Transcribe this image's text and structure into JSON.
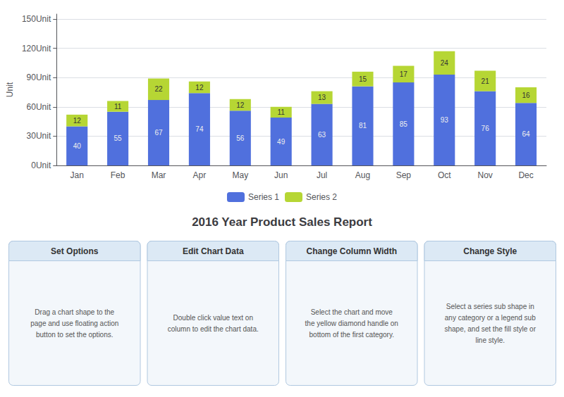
{
  "chart_data": {
    "type": "bar",
    "title": "2016 Year Product Sales Report",
    "categories": [
      "Jan",
      "Feb",
      "Mar",
      "Apr",
      "May",
      "Jun",
      "Jul",
      "Aug",
      "Sep",
      "Oct",
      "Nov",
      "Dec"
    ],
    "series": [
      {
        "name": "Series 1",
        "values": [
          40,
          55,
          67,
          74,
          56,
          49,
          63,
          81,
          85,
          93,
          76,
          64
        ]
      },
      {
        "name": "Series 2",
        "values": [
          12,
          11,
          22,
          12,
          12,
          11,
          13,
          15,
          17,
          24,
          21,
          16
        ]
      }
    ],
    "stacked": true,
    "data_labels": true,
    "ylabel": "Unit",
    "ylim": [
      0,
      155
    ],
    "yticks": [
      {
        "value": 0,
        "label": "0Unit"
      },
      {
        "value": 30,
        "label": "30Unit"
      },
      {
        "value": 60,
        "label": "60Unit"
      },
      {
        "value": 90,
        "label": "90Unit"
      },
      {
        "value": 120,
        "label": "120Unit"
      },
      {
        "value": 150,
        "label": "150Unit"
      }
    ],
    "grid": true,
    "legend": "bottom",
    "annotations": [
      {
        "title": "Set Options",
        "text": "Drag a chart shape to the\npage and use floating action\nbutton to set the options."
      },
      {
        "title": "Edit Chart Data",
        "text": "Double click value text on\ncolumn to edit the chart data."
      },
      {
        "title": "Change Column Width",
        "text": "Select the chart and move\nthe yellow diamond handle on\nbottom of the first category."
      },
      {
        "title": "Change Style",
        "text": "Select a series sub shape in\nany category or a legend sub\nshape, and set the fill style or\nline style."
      }
    ]
  }
}
